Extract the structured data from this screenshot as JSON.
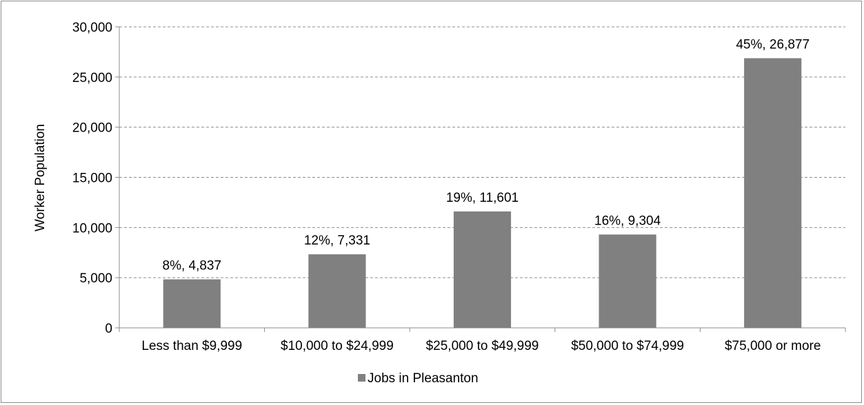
{
  "chart_data": {
    "type": "bar",
    "categories": [
      "Less than $9,999",
      "$10,000 to $24,999",
      "$25,000 to $49,999",
      "$50,000 to $74,999",
      "$75,000 or more"
    ],
    "series": [
      {
        "name": "Jobs in Pleasanton",
        "values": [
          4837,
          7331,
          11601,
          9304,
          26877
        ],
        "data_labels": [
          "8%, 4,837",
          "12%, 7,331",
          "19%, 11,601",
          "16%, 9,304",
          "45%, 26,877"
        ],
        "color": "#808080"
      }
    ],
    "title": "",
    "xlabel": "",
    "ylabel": "Worker Population",
    "ylim": [
      0,
      30000
    ],
    "yticks": [
      0,
      5000,
      10000,
      15000,
      20000,
      25000,
      30000
    ],
    "ytick_labels": [
      "0",
      "5,000",
      "10,000",
      "15,000",
      "20,000",
      "25,000",
      "30,000"
    ],
    "grid": true,
    "grid_style": "dashed",
    "legend": {
      "position": "bottom",
      "entries": [
        "Jobs in Pleasanton"
      ]
    }
  }
}
